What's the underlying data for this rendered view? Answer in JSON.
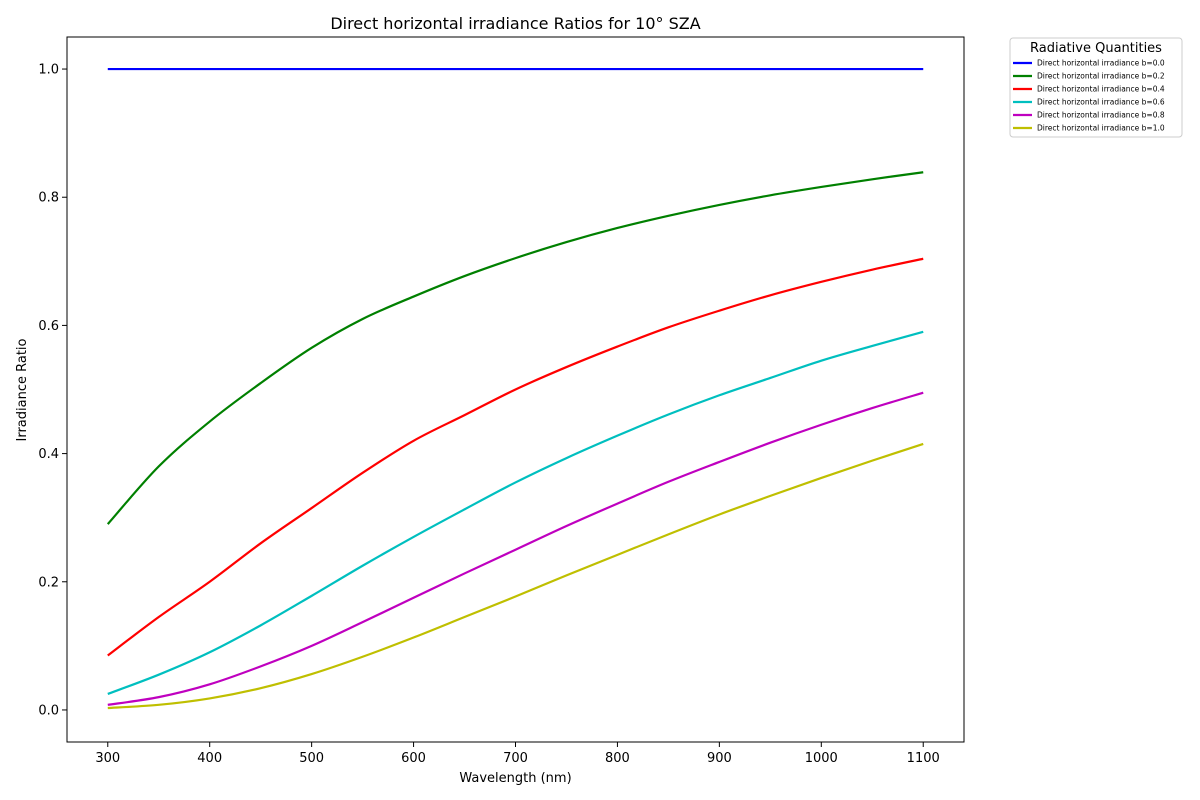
{
  "chart_data": {
    "type": "line",
    "title": "Direct horizontal irradiance Ratios for 10° SZA",
    "xlabel": "Wavelength (nm)",
    "ylabel": "Irradiance Ratio",
    "xlim": [
      260,
      1140
    ],
    "ylim": [
      -0.05,
      1.05
    ],
    "xticks": [
      300,
      400,
      500,
      600,
      700,
      800,
      900,
      1000,
      1100
    ],
    "xtick_labels": [
      "300",
      "400",
      "500",
      "600",
      "700",
      "800",
      "900",
      "1000",
      "1100"
    ],
    "yticks": [
      0.0,
      0.2,
      0.4,
      0.6,
      0.8,
      1.0
    ],
    "ytick_labels": [
      "0.0",
      "0.2",
      "0.4",
      "0.6",
      "0.8",
      "1.0"
    ],
    "grid": false,
    "legend": {
      "title": "Radiative Quantities",
      "placement": "outside-top-right"
    },
    "x": [
      300,
      350,
      400,
      450,
      500,
      550,
      600,
      650,
      700,
      750,
      800,
      850,
      900,
      950,
      1000,
      1050,
      1100
    ],
    "series": [
      {
        "name": "Direct horizontal irradiance b=0.0",
        "color": "#0000ff",
        "values": [
          1.0,
          1.0,
          1.0,
          1.0,
          1.0,
          1.0,
          1.0,
          1.0,
          1.0,
          1.0,
          1.0,
          1.0,
          1.0,
          1.0,
          1.0,
          1.0,
          1.0
        ]
      },
      {
        "name": "Direct horizontal irradiance b=0.2",
        "color": "#008000",
        "values": [
          0.29,
          0.38,
          0.45,
          0.51,
          0.565,
          0.61,
          0.645,
          0.677,
          0.705,
          0.73,
          0.752,
          0.771,
          0.788,
          0.803,
          0.816,
          0.828,
          0.839
        ]
      },
      {
        "name": "Direct horizontal irradiance b=0.4",
        "color": "#ff0000",
        "values": [
          0.085,
          0.145,
          0.2,
          0.26,
          0.315,
          0.37,
          0.42,
          0.46,
          0.5,
          0.535,
          0.567,
          0.597,
          0.623,
          0.647,
          0.668,
          0.687,
          0.704
        ]
      },
      {
        "name": "Direct horizontal irradiance b=0.6",
        "color": "#00bfbf",
        "values": [
          0.025,
          0.055,
          0.09,
          0.132,
          0.178,
          0.225,
          0.27,
          0.313,
          0.355,
          0.393,
          0.428,
          0.461,
          0.491,
          0.518,
          0.545,
          0.568,
          0.59
        ]
      },
      {
        "name": "Direct horizontal irradiance b=0.8",
        "color": "#bf00bf",
        "values": [
          0.008,
          0.02,
          0.04,
          0.068,
          0.1,
          0.137,
          0.175,
          0.213,
          0.25,
          0.287,
          0.322,
          0.356,
          0.387,
          0.417,
          0.445,
          0.471,
          0.495
        ]
      },
      {
        "name": "Direct horizontal irradiance b=1.0",
        "color": "#bfbf00",
        "values": [
          0.003,
          0.008,
          0.018,
          0.034,
          0.056,
          0.083,
          0.113,
          0.145,
          0.177,
          0.21,
          0.242,
          0.274,
          0.305,
          0.334,
          0.362,
          0.389,
          0.415
        ]
      }
    ]
  }
}
